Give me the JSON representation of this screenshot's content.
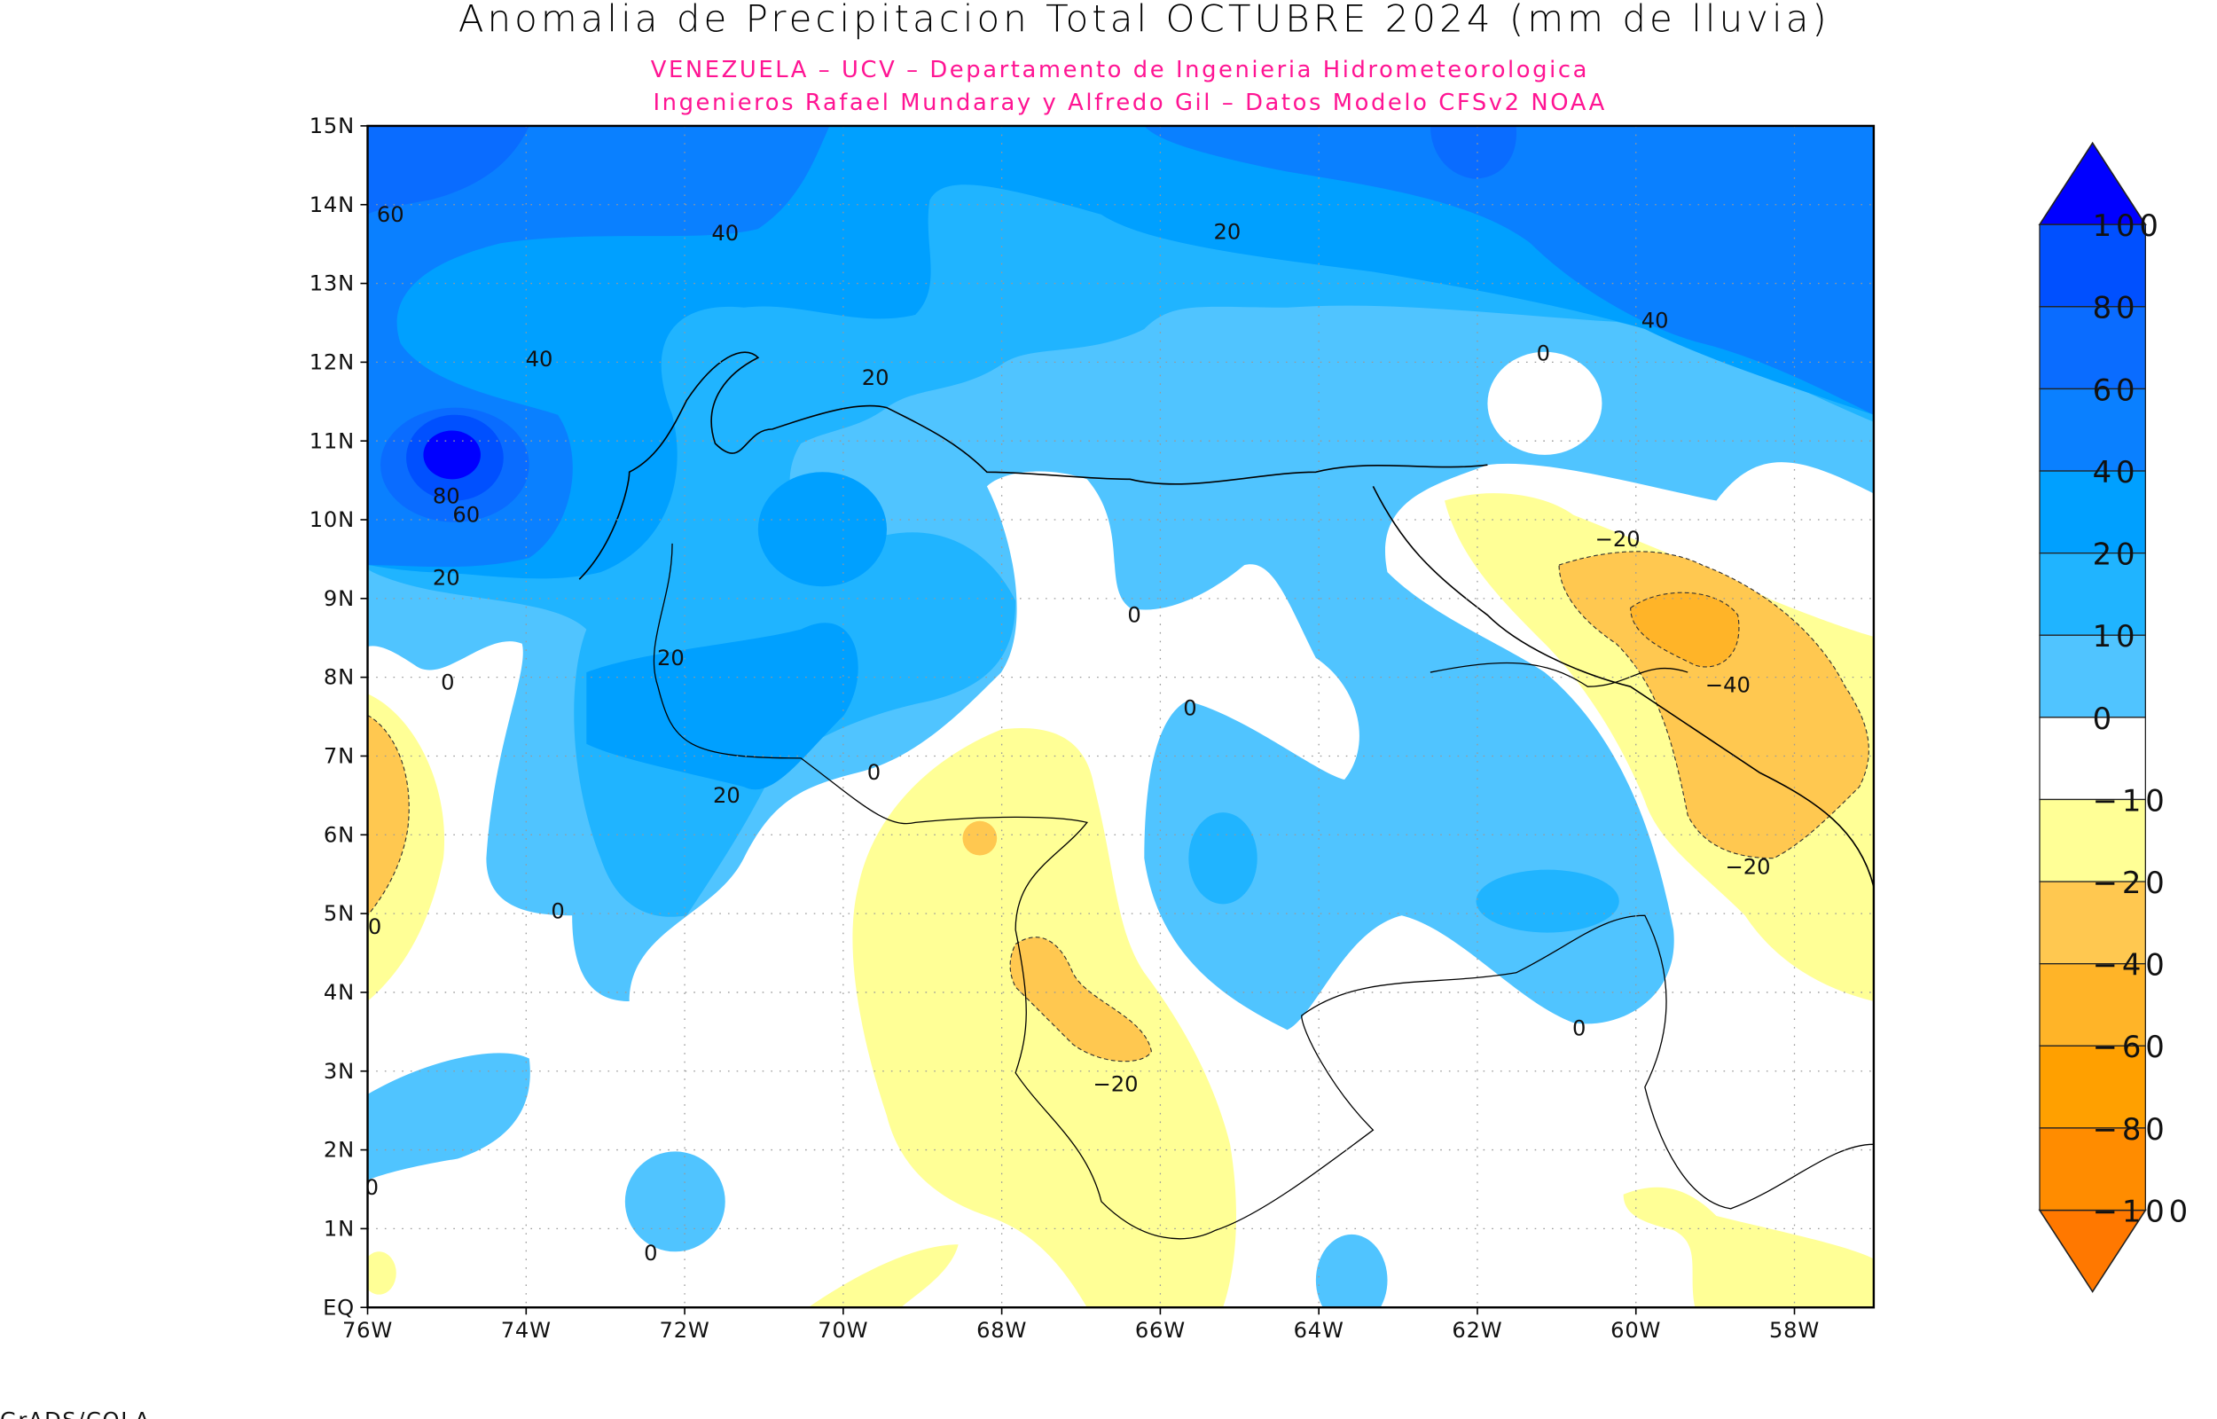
{
  "title": "Anomalia de Precipitacion Total OCTUBRE 2024 (mm de lluvia)",
  "subtitle_1": "VENEZUELA – UCV – Departamento de Ingenieria Hidrometeorologica",
  "subtitle_2": "Ingenieros Rafael Mundaray y Alfredo Gil – Datos Modelo CFSv2 NOAA",
  "footer": "GrADS/COLA",
  "axes": {
    "lon_labels": [
      "76W",
      "74W",
      "72W",
      "70W",
      "68W",
      "66W",
      "64W",
      "62W",
      "60W",
      "58W"
    ],
    "lon_values": [
      -76,
      -74,
      -72,
      -70,
      -68,
      -66,
      -64,
      -62,
      -60,
      -58
    ],
    "lat_labels": [
      "EQ",
      "1N",
      "2N",
      "3N",
      "4N",
      "5N",
      "6N",
      "7N",
      "8N",
      "9N",
      "10N",
      "11N",
      "12N",
      "13N",
      "14N",
      "15N"
    ],
    "lat_values": [
      0,
      1,
      2,
      3,
      4,
      5,
      6,
      7,
      8,
      9,
      10,
      11,
      12,
      13,
      14,
      15
    ],
    "lon_range": [
      -76,
      -57
    ],
    "lat_range": [
      0,
      15
    ]
  },
  "colorbar": {
    "labels": [
      "100",
      "80",
      "60",
      "40",
      "20",
      "10",
      "0",
      "−10",
      "−20",
      "−40",
      "−60",
      "−80",
      "−100"
    ],
    "over_color": "#0000ff",
    "under_color": "#ff7800",
    "colors": [
      "#0050ff",
      "#0a6cff",
      "#0a80ff",
      "#00a0ff",
      "#20b4ff",
      "#50c4ff",
      "#ffffff",
      "#ffff96",
      "#ffc850",
      "#ffb428",
      "#ffa000",
      "#ff8c00"
    ]
  },
  "contour_labels": [
    "60",
    "40",
    "20",
    "40",
    "0",
    "40",
    "20",
    "80",
    "60",
    "20",
    "−20",
    "0",
    "20",
    "0",
    "−40",
    "0",
    "0",
    "20",
    "−20",
    "0",
    "0",
    "0",
    "−20",
    "0",
    "0"
  ]
}
